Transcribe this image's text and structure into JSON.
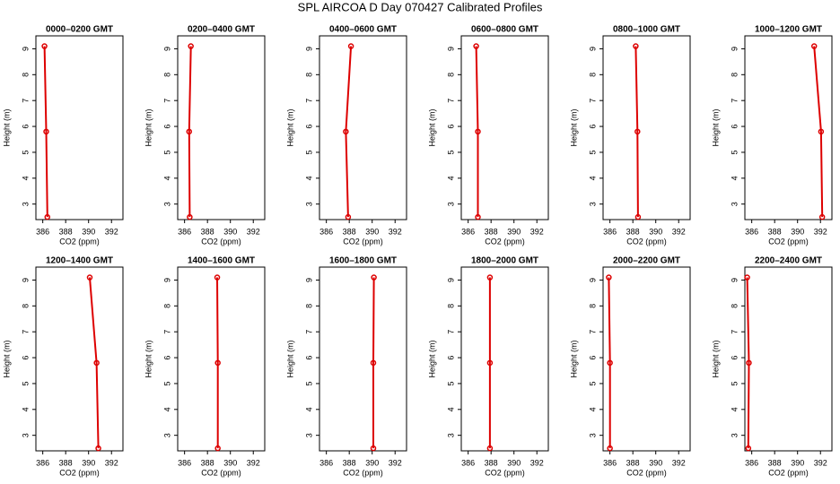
{
  "title": "SPL AIRCOA D  Day 070427  Calibrated Profiles",
  "chart_data": [
    {
      "type": "line",
      "title": "0000–0200 GMT",
      "x_label": "CO2 (ppm)",
      "y_label": "Height (m)",
      "color": "#dd0000",
      "x": [
        386.15,
        386.3,
        386.4
      ],
      "values": [
        9.1,
        5.8,
        2.5
      ],
      "xlim": [
        385.4,
        393.0
      ],
      "ylim": [
        2.4,
        9.5
      ],
      "xticks": [
        386,
        388,
        390,
        392
      ],
      "yticks": [
        3,
        4,
        5,
        6,
        7,
        8,
        9
      ]
    },
    {
      "type": "line",
      "title": "0200–0400 GMT",
      "x_label": "CO2 (ppm)",
      "y_label": "Height (m)",
      "color": "#dd0000",
      "x": [
        386.55,
        386.4,
        386.45
      ],
      "values": [
        9.1,
        5.8,
        2.5
      ],
      "xlim": [
        385.4,
        393.0
      ],
      "ylim": [
        2.4,
        9.5
      ],
      "xticks": [
        386,
        388,
        390,
        392
      ],
      "yticks": [
        3,
        4,
        5,
        6,
        7,
        8,
        9
      ]
    },
    {
      "type": "line",
      "title": "0400–0600 GMT",
      "x_label": "CO2 (ppm)",
      "y_label": "Height (m)",
      "color": "#dd0000",
      "x": [
        388.15,
        387.7,
        387.9
      ],
      "values": [
        9.1,
        5.8,
        2.5
      ],
      "xlim": [
        385.4,
        393.0
      ],
      "ylim": [
        2.4,
        9.5
      ],
      "xticks": [
        386,
        388,
        390,
        392
      ],
      "yticks": [
        3,
        4,
        5,
        6,
        7,
        8,
        9
      ]
    },
    {
      "type": "line",
      "title": "0600–0800 GMT",
      "x_label": "CO2 (ppm)",
      "y_label": "Height (m)",
      "color": "#dd0000",
      "x": [
        386.7,
        386.85,
        386.85
      ],
      "values": [
        9.1,
        5.8,
        2.5
      ],
      "xlim": [
        385.4,
        393.0
      ],
      "ylim": [
        2.4,
        9.5
      ],
      "xticks": [
        386,
        388,
        390,
        392
      ],
      "yticks": [
        3,
        4,
        5,
        6,
        7,
        8,
        9
      ]
    },
    {
      "type": "line",
      "title": "0800–1000 GMT",
      "x_label": "CO2 (ppm)",
      "y_label": "Height (m)",
      "color": "#dd0000",
      "x": [
        388.25,
        388.4,
        388.45
      ],
      "values": [
        9.1,
        5.8,
        2.5
      ],
      "xlim": [
        385.4,
        393.0
      ],
      "ylim": [
        2.4,
        9.5
      ],
      "xticks": [
        386,
        388,
        390,
        392
      ],
      "yticks": [
        3,
        4,
        5,
        6,
        7,
        8,
        9
      ]
    },
    {
      "type": "line",
      "title": "1000–1200 GMT",
      "x_label": "CO2 (ppm)",
      "y_label": "Height (m)",
      "color": "#dd0000",
      "x": [
        391.45,
        392.05,
        392.15
      ],
      "values": [
        9.1,
        5.8,
        2.5
      ],
      "xlim": [
        385.4,
        393.0
      ],
      "ylim": [
        2.4,
        9.5
      ],
      "xticks": [
        386,
        388,
        390,
        392
      ],
      "yticks": [
        3,
        4,
        5,
        6,
        7,
        8,
        9
      ]
    },
    {
      "type": "line",
      "title": "1200–1400 GMT",
      "x_label": "CO2 (ppm)",
      "y_label": "Height (m)",
      "color": "#dd0000",
      "x": [
        390.1,
        390.7,
        390.85
      ],
      "values": [
        9.1,
        5.8,
        2.5
      ],
      "xlim": [
        385.4,
        393.0
      ],
      "ylim": [
        2.4,
        9.5
      ],
      "xticks": [
        386,
        388,
        390,
        392
      ],
      "yticks": [
        3,
        4,
        5,
        6,
        7,
        8,
        9
      ]
    },
    {
      "type": "line",
      "title": "1400–1600 GMT",
      "x_label": "CO2 (ppm)",
      "y_label": "Height (m)",
      "color": "#dd0000",
      "x": [
        388.85,
        388.9,
        388.9
      ],
      "values": [
        9.1,
        5.8,
        2.5
      ],
      "xlim": [
        385.4,
        393.0
      ],
      "ylim": [
        2.4,
        9.5
      ],
      "xticks": [
        386,
        388,
        390,
        392
      ],
      "yticks": [
        3,
        4,
        5,
        6,
        7,
        8,
        9
      ]
    },
    {
      "type": "line",
      "title": "1600–1800 GMT",
      "x_label": "CO2 (ppm)",
      "y_label": "Height (m)",
      "color": "#dd0000",
      "x": [
        390.15,
        390.1,
        390.1
      ],
      "values": [
        9.1,
        5.8,
        2.5
      ],
      "xlim": [
        385.4,
        393.0
      ],
      "ylim": [
        2.4,
        9.5
      ],
      "xticks": [
        386,
        388,
        390,
        392
      ],
      "yticks": [
        3,
        4,
        5,
        6,
        7,
        8,
        9
      ]
    },
    {
      "type": "line",
      "title": "1800–2000 GMT",
      "x_label": "CO2 (ppm)",
      "y_label": "Height (m)",
      "color": "#dd0000",
      "x": [
        387.9,
        387.9,
        387.9
      ],
      "values": [
        9.1,
        5.8,
        2.5
      ],
      "xlim": [
        385.4,
        393.0
      ],
      "ylim": [
        2.4,
        9.5
      ],
      "xticks": [
        386,
        388,
        390,
        392
      ],
      "yticks": [
        3,
        4,
        5,
        6,
        7,
        8,
        9
      ]
    },
    {
      "type": "line",
      "title": "2000–2200 GMT",
      "x_label": "CO2 (ppm)",
      "y_label": "Height (m)",
      "color": "#dd0000",
      "x": [
        385.9,
        386.0,
        386.0
      ],
      "values": [
        9.1,
        5.8,
        2.5
      ],
      "xlim": [
        385.4,
        393.0
      ],
      "ylim": [
        2.4,
        9.5
      ],
      "xticks": [
        386,
        388,
        390,
        392
      ],
      "yticks": [
        3,
        4,
        5,
        6,
        7,
        8,
        9
      ]
    },
    {
      "type": "line",
      "title": "2200–2400 GMT",
      "x_label": "CO2 (ppm)",
      "y_label": "Height (m)",
      "color": "#dd0000",
      "x": [
        385.6,
        385.75,
        385.7
      ],
      "values": [
        9.1,
        5.8,
        2.5
      ],
      "xlim": [
        385.4,
        393.0
      ],
      "ylim": [
        2.4,
        9.5
      ],
      "xticks": [
        386,
        388,
        390,
        392
      ],
      "yticks": [
        3,
        4,
        5,
        6,
        7,
        8,
        9
      ]
    }
  ]
}
